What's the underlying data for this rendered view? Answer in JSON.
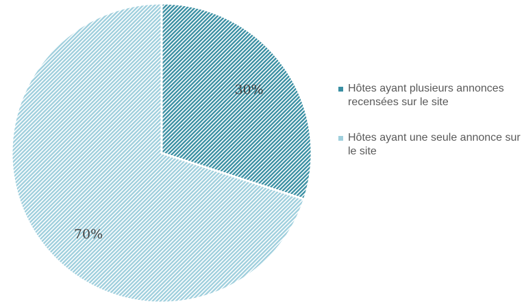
{
  "chart_data": {
    "type": "pie",
    "title": "",
    "slices": [
      {
        "label": "Hôtes ayant plusieurs annonces recensées sur le site",
        "value": 30,
        "display": "30%",
        "color": "#3a8fa3"
      },
      {
        "label": "Hôtes ayant une seule annonce sur le site",
        "value": 70,
        "display": "70%",
        "color": "#9fcfdd"
      }
    ],
    "start_angle_deg": 0,
    "direction": "clockwise",
    "legend_position": "right"
  }
}
